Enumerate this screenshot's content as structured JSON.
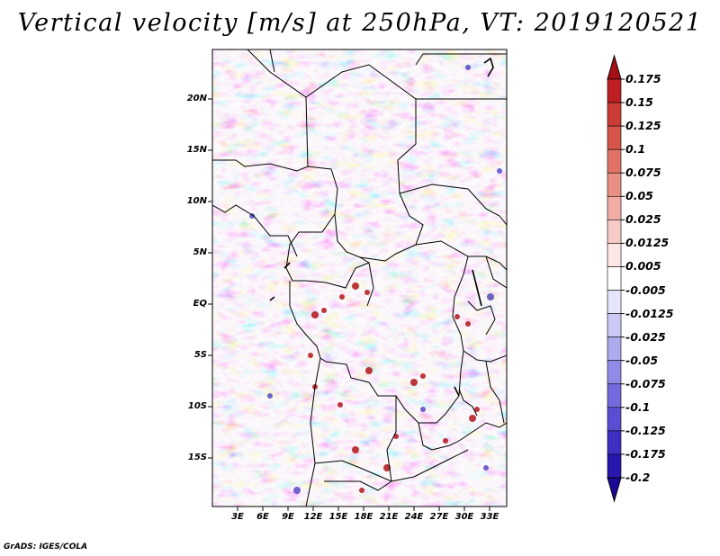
{
  "title": "Vertical velocity [m/s] at 250hPa, VT: 2019120521",
  "footer": "GrADS: IGES/COLA",
  "lat_labels": [
    "20N",
    "15N",
    "10N",
    "5N",
    "EQ",
    "5S",
    "10S",
    "15S"
  ],
  "lon_labels": [
    "3E",
    "6E",
    "9E",
    "12E",
    "15E",
    "18E",
    "21E",
    "24E",
    "27E",
    "30E",
    "33E"
  ],
  "colorbar": {
    "labels": [
      "0.175",
      "0.15",
      "0.125",
      "0.1",
      "0.075",
      "0.05",
      "0.025",
      "0.0125",
      "0.005",
      "-0.005",
      "-0.0125",
      "-0.025",
      "-0.05",
      "-0.075",
      "-0.1",
      "-0.125",
      "-0.175",
      "-0.2"
    ],
    "colors": [
      "#a50f15",
      "#bd1f23",
      "#cb3a34",
      "#d6564c",
      "#e07366",
      "#e98f83",
      "#f1ada4",
      "#f7cbc5",
      "#fde6e3",
      "#ffffff",
      "#e6e6fb",
      "#cccaf5",
      "#aeaaee",
      "#908be6",
      "#736bdd",
      "#5a4ed4",
      "#3e30c4",
      "#2816ad",
      "#1a0896"
    ]
  },
  "icon_names": [
    "colorbar-top-arrow",
    "colorbar-bottom-arrow"
  ]
}
